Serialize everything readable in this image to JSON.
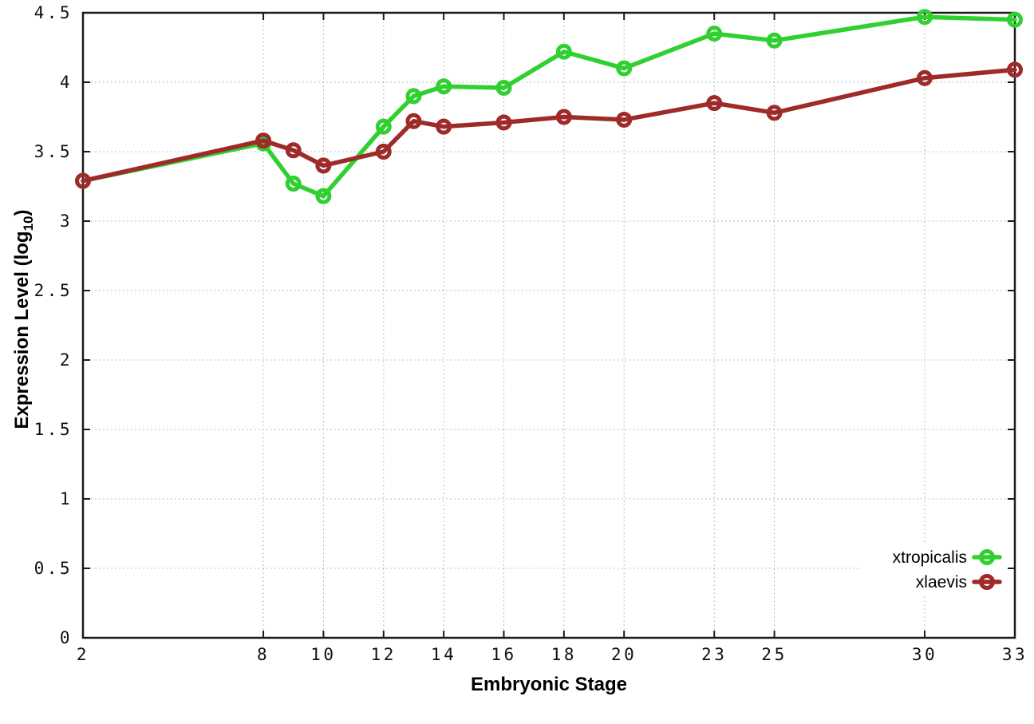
{
  "chart_data": {
    "type": "line",
    "title": "",
    "xlabel": "Embryonic Stage",
    "ylabel": {
      "prefix": "Expression Level (log",
      "subscript": "10",
      "suffix": ")"
    },
    "xlim": [
      2,
      33
    ],
    "ylim": [
      0,
      4.5
    ],
    "xticks": [
      2,
      8,
      10,
      12,
      14,
      16,
      18,
      20,
      23,
      25,
      30,
      33
    ],
    "yticks": [
      0,
      0.5,
      1,
      1.5,
      2,
      2.5,
      3,
      3.5,
      4,
      4.5
    ],
    "grid": "dotted",
    "legend_position": "bottom-right-inside",
    "marker": "open-circle",
    "x": [
      2,
      8,
      9,
      10,
      12,
      13,
      14,
      16,
      18,
      20,
      23,
      25,
      30,
      33
    ],
    "series": [
      {
        "name": "xtropicalis",
        "color": "#30d030",
        "values": [
          3.29,
          3.56,
          3.27,
          3.18,
          3.68,
          3.9,
          3.97,
          3.96,
          4.22,
          4.1,
          4.35,
          4.3,
          4.47,
          4.45
        ]
      },
      {
        "name": "xlaevis",
        "color": "#9e2a2a",
        "values": [
          3.29,
          3.58,
          3.51,
          3.4,
          3.5,
          3.72,
          3.68,
          3.71,
          3.75,
          3.73,
          3.85,
          3.78,
          4.03,
          4.09
        ]
      }
    ]
  },
  "colors": {
    "background": "#ffffff",
    "axis": "#1a1a1a",
    "grid": "#a8a8a8",
    "tick_label": "#111111"
  }
}
